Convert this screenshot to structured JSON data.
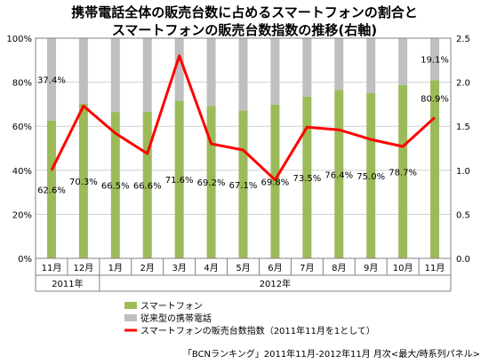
{
  "chart_data": {
    "type": "bar",
    "title_line1": "携帯電話全体の販売台数に占めるスマートフォンの割合と",
    "title_line2": "スマートフォンの販売台数指数の推移(右軸)",
    "categories": [
      "11月",
      "12月",
      "1月",
      "2月",
      "3月",
      "4月",
      "5月",
      "6月",
      "7月",
      "8月",
      "9月",
      "10月",
      "11月"
    ],
    "year_groups": [
      {
        "label": "2011年",
        "span": [
          0,
          1
        ]
      },
      {
        "label": "2012年",
        "span": [
          2,
          12
        ]
      }
    ],
    "series": [
      {
        "name": "スマートフォン",
        "color": "#9bbb59",
        "values": [
          62.6,
          70.3,
          66.5,
          66.6,
          71.6,
          69.2,
          67.1,
          69.8,
          73.5,
          76.4,
          75.0,
          78.7,
          80.9
        ]
      },
      {
        "name": "従来型の携帯電話",
        "color": "#bfbfbf",
        "values": [
          37.4,
          29.7,
          33.5,
          33.4,
          28.4,
          30.8,
          32.9,
          30.2,
          26.5,
          23.6,
          25.0,
          21.3,
          19.1
        ]
      },
      {
        "name": "スマートフォンの販売台数指数（2011年11月を1として）",
        "color": "#ff0000",
        "axis": "right",
        "values": [
          1.0,
          1.73,
          1.42,
          1.19,
          2.3,
          1.3,
          1.23,
          0.89,
          1.49,
          1.46,
          1.35,
          1.27,
          1.6
        ]
      }
    ],
    "data_labels": {
      "smartphone": [
        "62.6%",
        "70.3%",
        "66.5%",
        "66.6%",
        "71.6%",
        "69.2%",
        "67.1%",
        "69.8%",
        "73.5%",
        "76.4%",
        "75.0%",
        "78.7%",
        "80.9%"
      ],
      "feature_first": "37.4%",
      "feature_last": "19.1%"
    },
    "y_left": {
      "ticks": [
        "0%",
        "20%",
        "40%",
        "60%",
        "80%",
        "100%"
      ],
      "min": 0,
      "max": 100
    },
    "y_right": {
      "ticks": [
        "0.0",
        "0.5",
        "1.0",
        "1.5",
        "2.0",
        "2.5"
      ],
      "min": 0,
      "max": 2.5
    },
    "legend_position": "bottom",
    "source": "「BCNランキング」2011年11月-2012年11月 月次<最大/時系列パネル>"
  }
}
